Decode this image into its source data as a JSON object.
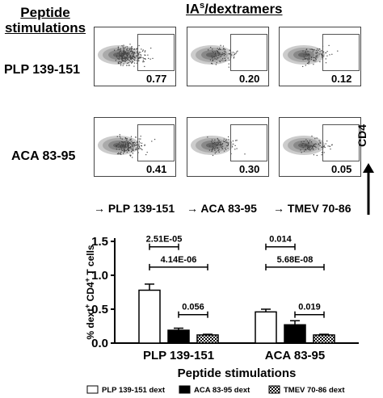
{
  "header": {
    "left_title_line1": "Peptide",
    "left_title_line2": "stimulations",
    "top_title_main": "IA",
    "top_title_sup": "s",
    "top_title_rest": "/dextramers"
  },
  "flow": {
    "rows": [
      {
        "label": "PLP 139-151",
        "values": [
          "0.77",
          "0.20",
          "0.12"
        ]
      },
      {
        "label": "ACA 83-95",
        "values": [
          "0.41",
          "0.30",
          "0.05"
        ]
      }
    ],
    "columns": [
      "PLP 139-151",
      "ACA 83-95",
      "TMEV 70-86"
    ],
    "y_axis_label": "CD4",
    "arrow_glyph": "→"
  },
  "chart_data": {
    "type": "bar",
    "categories": [
      "PLP 139-151",
      "ACA 83-95"
    ],
    "series": [
      {
        "name": "PLP 139-151 dext",
        "values": [
          0.78,
          0.46
        ],
        "errors": [
          0.09,
          0.04
        ],
        "fill": "#ffffff"
      },
      {
        "name": "ACA 83-95 dext",
        "values": [
          0.19,
          0.27
        ],
        "errors": [
          0.03,
          0.06
        ],
        "fill": "#000000"
      },
      {
        "name": "TMEV 70-86 dext",
        "values": [
          0.12,
          0.12
        ],
        "errors": [
          0.01,
          0.01
        ],
        "fill": "checker"
      }
    ],
    "ylabel_pre": "% dext",
    "ylabel_sup1": "+",
    "ylabel_mid": " CD4",
    "ylabel_sup2": "+",
    "ylabel_post": " T cells",
    "xlabel": "Peptide stimulations",
    "ylim": [
      0,
      1.5
    ],
    "yticks": [
      "0.0",
      "0.5",
      "1.0",
      "1.5"
    ],
    "annotations": [
      {
        "group": 0,
        "from": 0,
        "to": 1,
        "level": 1.42,
        "text": "2.51E-05"
      },
      {
        "group": 0,
        "from": 0,
        "to": 2,
        "level": 1.12,
        "text": "4.14E-06"
      },
      {
        "group": 0,
        "from": 1,
        "to": 2,
        "level": 0.42,
        "text": "0.056"
      },
      {
        "group": 1,
        "from": 0,
        "to": 1,
        "level": 1.42,
        "text": "0.014"
      },
      {
        "group": 1,
        "from": 0,
        "to": 2,
        "level": 1.12,
        "text": "5.68E-08"
      },
      {
        "group": 1,
        "from": 1,
        "to": 2,
        "level": 0.42,
        "text": "0.019"
      }
    ],
    "legend_position": "bottom"
  }
}
